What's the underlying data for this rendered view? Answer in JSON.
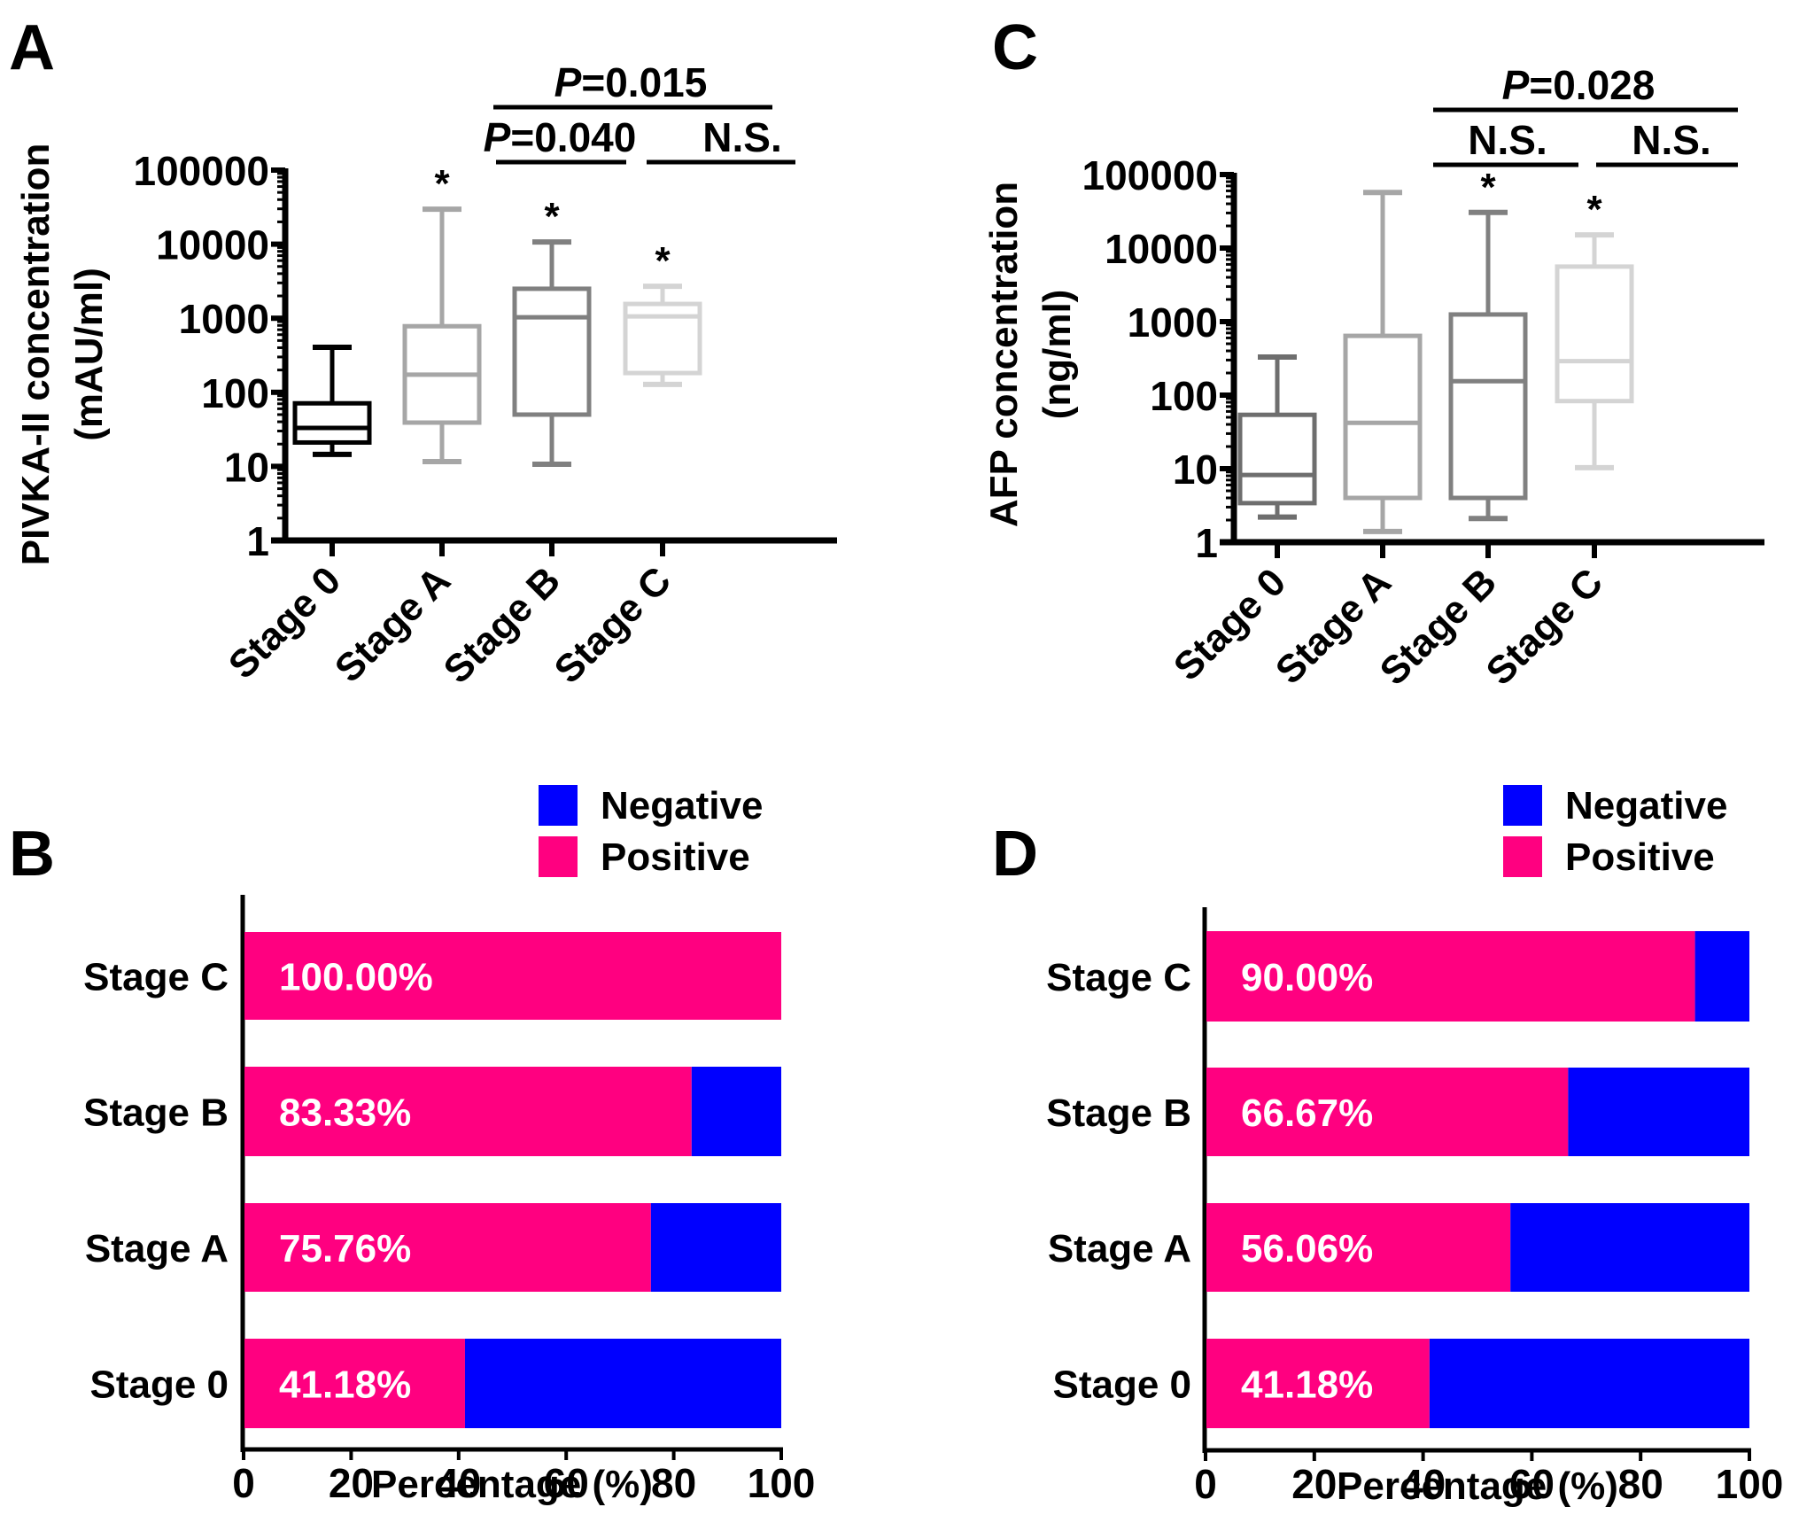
{
  "colors": {
    "negative": "#0000ff",
    "positive": "#ff0080",
    "axis": "#000000",
    "box_stage0_A": "#000000",
    "box_stageA_A": "#a6a6a6",
    "box_stageB_A": "#808080",
    "box_stageC_A": "#d4d4d4",
    "box_stage0_C": "#6e6e6e",
    "box_stageA_C": "#a6a6a6",
    "box_stageB_C": "#808080",
    "box_stageC_C": "#d4d4d4"
  },
  "chart_data": [
    {
      "panel": "A",
      "type": "box",
      "ylabel_line1": "PIVKA-II concentration",
      "ylabel_line2": "(mAU/ml)",
      "yscale": "log",
      "ylim": [
        1,
        100000
      ],
      "yticks": [
        "1",
        "10",
        "100",
        "1000",
        "10000",
        "100000"
      ],
      "yticks_values": [
        1,
        10,
        100,
        1000,
        10000,
        100000
      ],
      "categories": [
        "Stage 0",
        "Stage A",
        "Stage B",
        "Stage C"
      ],
      "boxes": [
        {
          "category": "Stage 0",
          "min": 14.5,
          "q1": 21,
          "median": 33,
          "q3": 71,
          "max": 405,
          "star": false,
          "color_key": "box_stage0_A"
        },
        {
          "category": "Stage A",
          "min": 11.6,
          "q1": 39,
          "median": 173,
          "q3": 780,
          "max": 29700,
          "star": true,
          "color_key": "box_stageA_A"
        },
        {
          "category": "Stage B",
          "min": 10.7,
          "q1": 50,
          "median": 1030,
          "q3": 2500,
          "max": 10700,
          "star": true,
          "color_key": "box_stageB_A"
        },
        {
          "category": "Stage C",
          "min": 128,
          "q1": 182,
          "median": 1060,
          "q3": 1560,
          "max": 2700,
          "star": true,
          "color_key": "box_stageC_A"
        }
      ],
      "star_symbol": "*",
      "significance": [
        {
          "from": "Stage A",
          "to": "Stage C",
          "label_italic": "P",
          "label_rest": "=0.015",
          "level": 2
        },
        {
          "from": "Stage A",
          "to": "Stage B",
          "label_italic": "P",
          "label_rest": "=0.040",
          "level": 1
        },
        {
          "from": "Stage B",
          "to": "Stage C",
          "label_italic": "",
          "label_rest": "N.S.",
          "level": 1
        }
      ]
    },
    {
      "panel": "C",
      "type": "box",
      "ylabel_line1": "AFP concentration",
      "ylabel_line2": "(ng/ml)",
      "yscale": "log",
      "ylim": [
        1,
        100000
      ],
      "yticks": [
        "1",
        "10",
        "100",
        "1000",
        "10000",
        "100000"
      ],
      "yticks_values": [
        1,
        10,
        100,
        1000,
        10000,
        100000
      ],
      "categories": [
        "Stage 0",
        "Stage A",
        "Stage B",
        "Stage C"
      ],
      "boxes": [
        {
          "category": "Stage 0",
          "min": 2.2,
          "q1": 3.4,
          "median": 8.2,
          "q3": 54,
          "max": 330,
          "star": false,
          "color_key": "box_stage0_C"
        },
        {
          "category": "Stage A",
          "min": 1.4,
          "q1": 4.0,
          "median": 42,
          "q3": 640,
          "max": 57000,
          "star": false,
          "color_key": "box_stageA_C"
        },
        {
          "category": "Stage B",
          "min": 2.1,
          "q1": 4.0,
          "median": 155,
          "q3": 1250,
          "max": 30500,
          "star": true,
          "color_key": "box_stageB_C"
        },
        {
          "category": "Stage C",
          "min": 10.3,
          "q1": 83,
          "median": 290,
          "q3": 5600,
          "max": 15100,
          "star": true,
          "color_key": "box_stageC_C"
        }
      ],
      "star_symbol": "*",
      "significance": [
        {
          "from": "Stage A",
          "to": "Stage C",
          "label_italic": "P",
          "label_rest": "=0.028",
          "level": 2
        },
        {
          "from": "Stage A",
          "to": "Stage B",
          "label_italic": "",
          "label_rest": "N.S.",
          "level": 1
        },
        {
          "from": "Stage B",
          "to": "Stage C",
          "label_italic": "",
          "label_rest": "N.S.",
          "level": 1
        }
      ]
    },
    {
      "panel": "B",
      "type": "bar",
      "orientation": "horizontal",
      "stacked": true,
      "xlabel": "Percentage (%)",
      "xlim": [
        0,
        100
      ],
      "xticks": [
        "0",
        "20",
        "40",
        "60",
        "80",
        "100"
      ],
      "xticks_values": [
        0,
        20,
        40,
        60,
        80,
        100
      ],
      "categories": [
        "Stage C",
        "Stage B",
        "Stage A",
        "Stage 0"
      ],
      "series": [
        {
          "name": "Positive",
          "values": [
            100.0,
            83.33,
            75.76,
            41.18
          ],
          "color_key": "positive"
        },
        {
          "name": "Negative",
          "values": [
            0.0,
            16.67,
            24.24,
            58.82
          ],
          "color_key": "negative"
        }
      ],
      "value_labels": [
        "100.00%",
        "83.33%",
        "75.76%",
        "41.18%"
      ],
      "legend": [
        "Negative",
        "Positive"
      ],
      "legend_position": "top-right"
    },
    {
      "panel": "D",
      "type": "bar",
      "orientation": "horizontal",
      "stacked": true,
      "xlabel": "Percentage (%)",
      "xlim": [
        0,
        100
      ],
      "xticks": [
        "0",
        "20",
        "40",
        "60",
        "80",
        "100"
      ],
      "xticks_values": [
        0,
        20,
        40,
        60,
        80,
        100
      ],
      "categories": [
        "Stage C",
        "Stage B",
        "Stage A",
        "Stage 0"
      ],
      "series": [
        {
          "name": "Positive",
          "values": [
            90.0,
            66.67,
            56.06,
            41.18
          ],
          "color_key": "positive"
        },
        {
          "name": "Negative",
          "values": [
            10.0,
            33.33,
            43.94,
            58.82
          ],
          "color_key": "negative"
        }
      ],
      "value_labels": [
        "90.00%",
        "66.67%",
        "56.06%",
        "41.18%"
      ],
      "legend": [
        "Negative",
        "Positive"
      ],
      "legend_position": "top-right"
    }
  ]
}
